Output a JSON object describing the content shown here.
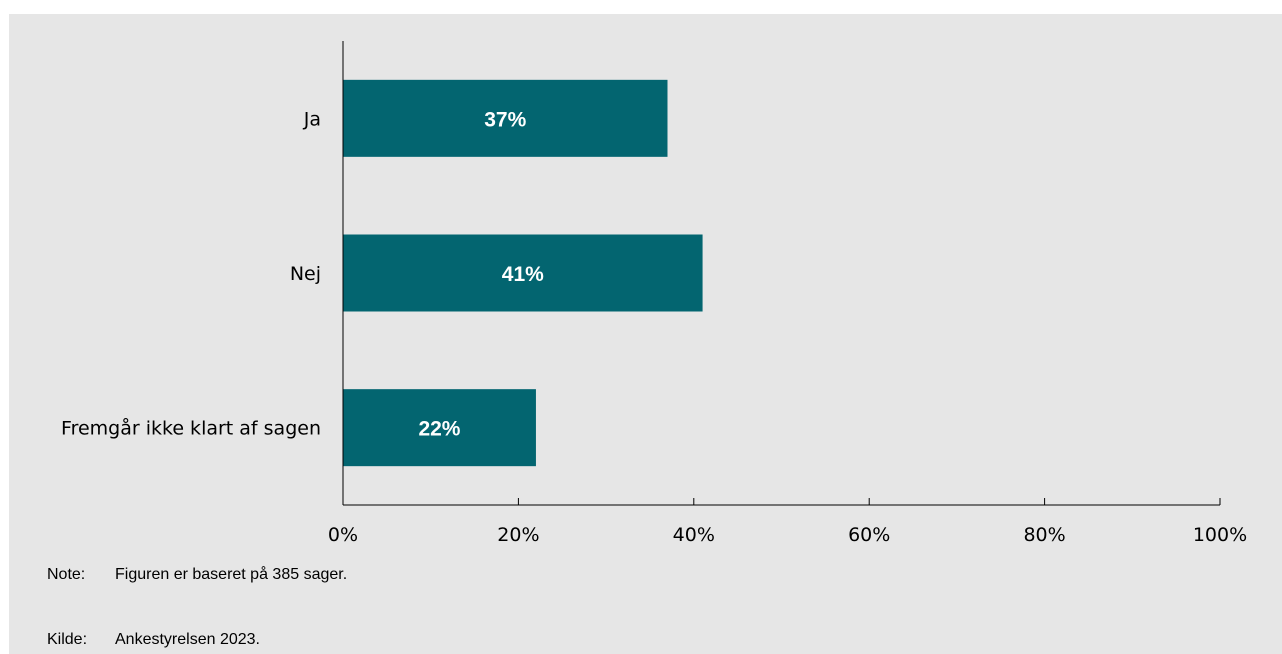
{
  "chart_data": {
    "type": "bar",
    "orientation": "horizontal",
    "categories": [
      "Ja",
      "Nej",
      "Fremgår ikke klart af sagen"
    ],
    "values": [
      37,
      41,
      22
    ],
    "value_labels": [
      "37%",
      "41%",
      "22%"
    ],
    "xlim": [
      0,
      100
    ],
    "x_ticks": [
      0,
      20,
      40,
      60,
      80,
      100
    ],
    "x_tick_labels": [
      "0%",
      "20%",
      "40%",
      "60%",
      "80%",
      "100%"
    ],
    "bar_color": "#036570",
    "grid": false,
    "legend": "none"
  },
  "footnotes": {
    "note_label": "Note:",
    "note_text": "Figuren er baseret på 385 sager.",
    "source_label": "Kilde:",
    "source_text": "Ankestyrelsen 2023."
  },
  "colors": {
    "background": "#e6e6e6",
    "bar": "#036570",
    "value_text": "#ffffff"
  }
}
